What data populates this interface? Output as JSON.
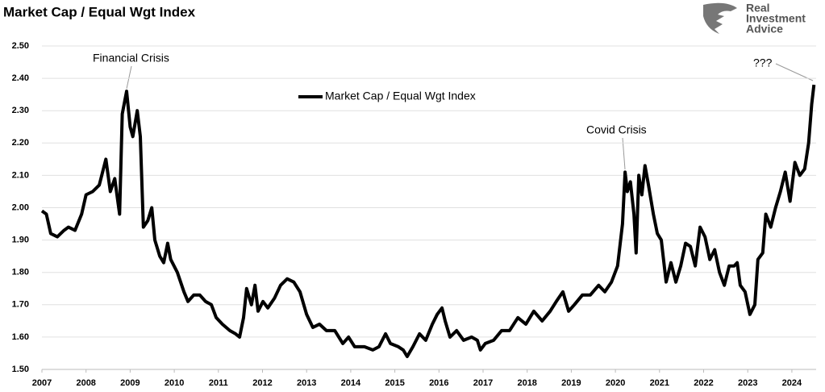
{
  "chart_data": {
    "type": "line",
    "title": "Market Cap / Equal Wgt Index",
    "x": [
      2007.0,
      2007.1,
      2007.2,
      2007.35,
      2007.5,
      2007.6,
      2007.75,
      2007.9,
      2008.0,
      2008.15,
      2008.3,
      2008.45,
      2008.55,
      2008.65,
      2008.72,
      2008.76,
      2008.82,
      2008.92,
      2009.0,
      2009.06,
      2009.16,
      2009.23,
      2009.3,
      2009.4,
      2009.49,
      2009.56,
      2009.67,
      2009.76,
      2009.85,
      2009.92,
      2010.07,
      2010.22,
      2010.31,
      2010.44,
      2010.58,
      2010.71,
      2010.84,
      2010.95,
      2011.09,
      2011.26,
      2011.39,
      2011.48,
      2011.57,
      2011.64,
      2011.75,
      2011.83,
      2011.9,
      2012.01,
      2012.12,
      2012.27,
      2012.41,
      2012.56,
      2012.71,
      2012.85,
      2013.0,
      2013.14,
      2013.29,
      2013.45,
      2013.64,
      2013.82,
      2013.95,
      2014.09,
      2014.31,
      2014.5,
      2014.64,
      2014.79,
      2014.9,
      2015.08,
      2015.19,
      2015.28,
      2015.41,
      2015.56,
      2015.7,
      2015.85,
      2015.96,
      2016.07,
      2016.14,
      2016.25,
      2016.4,
      2016.56,
      2016.74,
      2016.87,
      2016.94,
      2017.05,
      2017.24,
      2017.42,
      2017.6,
      2017.79,
      2017.97,
      2018.15,
      2018.34,
      2018.52,
      2018.66,
      2018.81,
      2018.94,
      2019.07,
      2019.25,
      2019.43,
      2019.62,
      2019.76,
      2019.91,
      2020.05,
      2020.16,
      2020.22,
      2020.27,
      2020.34,
      2020.42,
      2020.47,
      2020.53,
      2020.6,
      2020.67,
      2020.75,
      2020.86,
      2020.95,
      2021.04,
      2021.15,
      2021.26,
      2021.37,
      2021.48,
      2021.59,
      2021.7,
      2021.81,
      2021.92,
      2022.03,
      2022.14,
      2022.25,
      2022.36,
      2022.47,
      2022.58,
      2022.69,
      2022.76,
      2022.83,
      2022.94,
      2023.05,
      2023.16,
      2023.23,
      2023.34,
      2023.41,
      2023.52,
      2023.63,
      2023.74,
      2023.85,
      2023.96,
      2024.07,
      2024.18,
      2024.29,
      2024.38,
      2024.45,
      2024.5
    ],
    "series": [
      {
        "name": "Market Cap / Equal Wgt Index",
        "color": "#000000",
        "values": [
          1.99,
          1.98,
          1.92,
          1.91,
          1.93,
          1.94,
          1.93,
          1.98,
          2.04,
          2.05,
          2.07,
          2.15,
          2.05,
          2.09,
          2.02,
          1.98,
          2.29,
          2.36,
          2.25,
          2.22,
          2.3,
          2.22,
          1.94,
          1.96,
          2.0,
          1.9,
          1.85,
          1.83,
          1.89,
          1.84,
          1.8,
          1.74,
          1.71,
          1.73,
          1.73,
          1.71,
          1.7,
          1.66,
          1.64,
          1.62,
          1.61,
          1.6,
          1.66,
          1.75,
          1.7,
          1.76,
          1.68,
          1.71,
          1.69,
          1.72,
          1.76,
          1.78,
          1.77,
          1.74,
          1.67,
          1.63,
          1.64,
          1.62,
          1.62,
          1.58,
          1.6,
          1.57,
          1.57,
          1.56,
          1.57,
          1.61,
          1.58,
          1.57,
          1.56,
          1.54,
          1.57,
          1.61,
          1.59,
          1.64,
          1.67,
          1.69,
          1.65,
          1.6,
          1.62,
          1.59,
          1.6,
          1.59,
          1.56,
          1.58,
          1.59,
          1.62,
          1.62,
          1.66,
          1.64,
          1.68,
          1.65,
          1.68,
          1.71,
          1.74,
          1.68,
          1.7,
          1.73,
          1.73,
          1.76,
          1.74,
          1.77,
          1.82,
          1.95,
          2.11,
          2.05,
          2.08,
          1.98,
          1.86,
          2.1,
          2.04,
          2.13,
          2.07,
          1.98,
          1.92,
          1.9,
          1.77,
          1.83,
          1.77,
          1.82,
          1.89,
          1.88,
          1.82,
          1.94,
          1.91,
          1.84,
          1.87,
          1.8,
          1.76,
          1.82,
          1.82,
          1.83,
          1.76,
          1.74,
          1.67,
          1.7,
          1.84,
          1.86,
          1.98,
          1.94,
          2.0,
          2.05,
          2.11,
          2.02,
          2.14,
          2.1,
          2.12,
          2.2,
          2.32,
          2.38
        ]
      }
    ],
    "xlim": [
      2007,
      2024.55
    ],
    "xticks": [
      2007,
      2008,
      2009,
      2010,
      2011,
      2012,
      2013,
      2014,
      2015,
      2016,
      2017,
      2018,
      2019,
      2020,
      2021,
      2022,
      2023,
      2024
    ],
    "ylim": [
      1.5,
      2.5
    ],
    "yticks": [
      {
        "value": 1.5,
        "label": "1.50"
      },
      {
        "value": 1.6,
        "label": "1.60"
      },
      {
        "value": 1.7,
        "label": "1.70"
      },
      {
        "value": 1.8,
        "label": "1.80"
      },
      {
        "value": 1.9,
        "label": "1.90"
      },
      {
        "value": 2.0,
        "label": "2.00"
      },
      {
        "value": 2.1,
        "label": "2.10"
      },
      {
        "value": 2.2,
        "label": "2.20"
      },
      {
        "value": 2.3,
        "label": "2.30"
      },
      {
        "value": 2.4,
        "label": "2.40"
      },
      {
        "value": 2.5,
        "label": "2.50"
      }
    ],
    "grid": true,
    "legend": "top",
    "annotations": [
      {
        "text": "Financial Crisis"
      },
      {
        "text": "Covid Crisis"
      },
      {
        "text": "???"
      }
    ]
  },
  "logo": [
    "Real",
    "Investment",
    "Advice"
  ]
}
